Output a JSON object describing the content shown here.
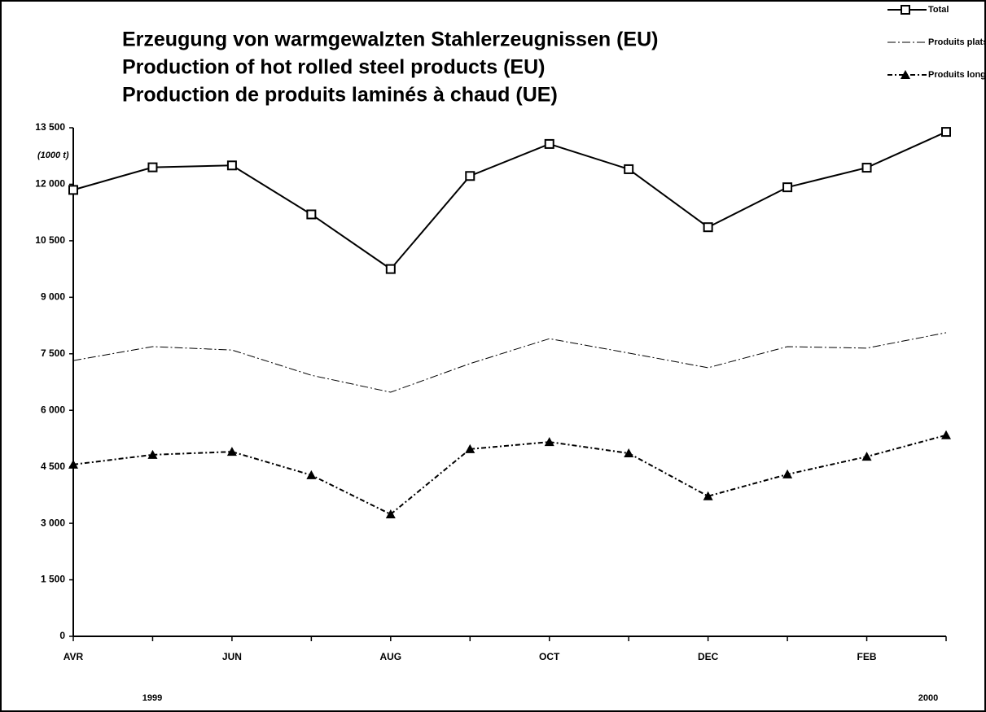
{
  "chart_data": {
    "type": "line",
    "title": [
      "Erzeugung von warmgewalzten Stahlerzeugnissen (EU)",
      "Production of hot rolled steel products (EU)",
      "Production de produits laminés à chaud (UE)"
    ],
    "y_label": "(1000 t)",
    "categories": [
      "AVR",
      null,
      "JUN",
      null,
      "AUG",
      null,
      "OCT",
      null,
      "DEC",
      null,
      "FEB",
      null
    ],
    "year_labels": [
      "1999",
      "2000"
    ],
    "series": [
      {
        "name": "Total",
        "color": "#000000",
        "dash": "none",
        "marker": "square",
        "values": [
          11850,
          12450,
          12500,
          11200,
          9750,
          12220,
          13070,
          12400,
          10860,
          11920,
          12440,
          13390
        ]
      },
      {
        "name": "Produits plats",
        "color": "#000000",
        "dash": "10 3 2 3",
        "marker": "none",
        "values": [
          7320,
          7690,
          7600,
          6930,
          6480,
          7240,
          7900,
          7520,
          7130,
          7690,
          7650,
          8060
        ]
      },
      {
        "name": "Produits longs",
        "color": "#000000",
        "dash": "6 3 2 3",
        "marker": "triangle",
        "values": [
          4560,
          4820,
          4900,
          4280,
          3240,
          4970,
          5160,
          4860,
          3720,
          4300,
          4770,
          5340
        ]
      }
    ],
    "ylim": [
      0,
      13500
    ],
    "yticks": [
      0,
      {
        "value": 1500,
        "label": "1 500"
      },
      {
        "value": 3000,
        "label": "3 000"
      },
      {
        "value": 4500,
        "label": "4 500"
      },
      {
        "value": 6000,
        "label": "6 000"
      },
      {
        "value": 7500,
        "label": "7 500"
      },
      {
        "value": 9000,
        "label": "9 000"
      },
      {
        "value": 10500,
        "label": "10 500"
      },
      {
        "value": 12000,
        "label": "12 000"
      },
      {
        "value": 13500,
        "label": "13 500"
      }
    ],
    "grid": false,
    "legend": "top-right"
  }
}
